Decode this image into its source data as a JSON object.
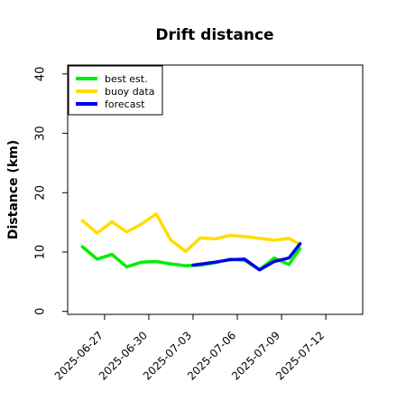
{
  "chart_data": {
    "type": "line",
    "title": "Drift distance",
    "xlabel": "",
    "ylabel": "Distance (km)",
    "xlim": [
      "2025-06-24T12:00",
      "2025-07-14T12:00"
    ],
    "ylim": [
      -0.5,
      41.5
    ],
    "yticks": [
      0,
      10,
      20,
      30,
      40
    ],
    "xticks": [
      {
        "date": "2025-06-27",
        "label": "2025-06-27",
        "color": "#000000"
      },
      {
        "date": "2025-06-30",
        "label": "2025-06-30",
        "color": "#000000"
      },
      {
        "date": "2025-07-03",
        "label": "2025-07-03",
        "color": "#2ca02c"
      },
      {
        "date": "2025-07-06",
        "label": "2025-07-06",
        "color": "#000000"
      },
      {
        "date": "2025-07-09",
        "label": "2025-07-09",
        "color": "#000000"
      },
      {
        "date": "2025-07-12",
        "label": "2025-07-12",
        "color": "#000000"
      }
    ],
    "grid": false,
    "legend_position": "top-left",
    "series": [
      {
        "name": "best est.",
        "color": "#00ee00",
        "points": [
          [
            "2025-06-25T12:00",
            10.9
          ],
          [
            "2025-06-26T12:00",
            8.8
          ],
          [
            "2025-06-27T12:00",
            9.6
          ],
          [
            "2025-06-28T12:00",
            7.5
          ],
          [
            "2025-06-29T12:00",
            8.3
          ],
          [
            "2025-06-30T12:00",
            8.4
          ],
          [
            "2025-07-01T12:00",
            8.0
          ],
          [
            "2025-07-02T12:00",
            7.7
          ],
          [
            "2025-07-03T12:00",
            7.8
          ],
          [
            "2025-07-04T12:00",
            8.2
          ],
          [
            "2025-07-05T12:00",
            8.8
          ],
          [
            "2025-07-06T12:00",
            8.6
          ],
          [
            "2025-07-07T12:00",
            7.0
          ],
          [
            "2025-07-08T12:00",
            9.0
          ],
          [
            "2025-07-09T12:00",
            7.9
          ],
          [
            "2025-07-10T06:00",
            10.6
          ]
        ]
      },
      {
        "name": "buoy data",
        "color": "#ffdd00",
        "points": [
          [
            "2025-06-25T12:00",
            15.3
          ],
          [
            "2025-06-26T12:00",
            13.2
          ],
          [
            "2025-06-27T12:00",
            15.1
          ],
          [
            "2025-06-28T12:00",
            13.4
          ],
          [
            "2025-06-29T12:00",
            14.7
          ],
          [
            "2025-06-30T12:00",
            16.4
          ],
          [
            "2025-07-01T12:00",
            12.0
          ],
          [
            "2025-07-02T12:00",
            10.1
          ],
          [
            "2025-07-03T12:00",
            12.4
          ],
          [
            "2025-07-04T12:00",
            12.2
          ],
          [
            "2025-07-05T12:00",
            12.8
          ],
          [
            "2025-07-06T12:00",
            12.6
          ],
          [
            "2025-07-07T12:00",
            12.3
          ],
          [
            "2025-07-08T12:00",
            12.0
          ],
          [
            "2025-07-09T12:00",
            12.3
          ],
          [
            "2025-07-10T06:00",
            11.3
          ]
        ]
      },
      {
        "name": "forecast",
        "color": "#0000ee",
        "points": [
          [
            "2025-07-03T00:00",
            7.8
          ],
          [
            "2025-07-04T12:00",
            8.3
          ],
          [
            "2025-07-05T12:00",
            8.7
          ],
          [
            "2025-07-06T12:00",
            8.8
          ],
          [
            "2025-07-07T12:00",
            7.0
          ],
          [
            "2025-07-08T12:00",
            8.4
          ],
          [
            "2025-07-09T12:00",
            9.0
          ],
          [
            "2025-07-10T06:00",
            11.4
          ]
        ]
      }
    ]
  }
}
